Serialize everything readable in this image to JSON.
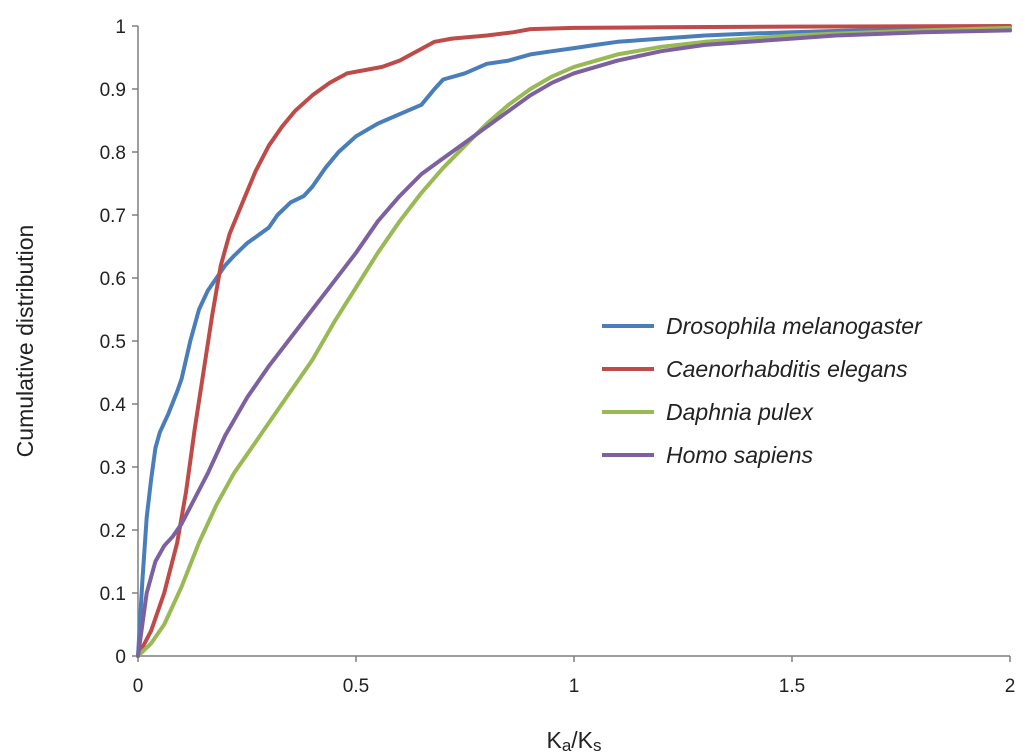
{
  "chart_data": {
    "type": "line",
    "title": "",
    "xlabel": "Ka/Ks",
    "ylabel": "Cumulative distribution",
    "xlim": [
      0,
      2
    ],
    "ylim": [
      0,
      1
    ],
    "x_ticks": [
      "0",
      "0.5",
      "1",
      "1.5",
      "2"
    ],
    "y_ticks": [
      "0",
      "0.1",
      "0.2",
      "0.3",
      "0.4",
      "0.5",
      "0.6",
      "0.7",
      "0.8",
      "0.9",
      "1"
    ],
    "grid": false,
    "legend_position": "right-center",
    "series": [
      {
        "name": "Drosophila melanogaster",
        "color": "#4a7ebb",
        "points": [
          [
            0,
            0
          ],
          [
            0.01,
            0.12
          ],
          [
            0.02,
            0.22
          ],
          [
            0.03,
            0.28
          ],
          [
            0.04,
            0.33
          ],
          [
            0.05,
            0.355
          ],
          [
            0.07,
            0.385
          ],
          [
            0.09,
            0.42
          ],
          [
            0.1,
            0.44
          ],
          [
            0.12,
            0.5
          ],
          [
            0.14,
            0.55
          ],
          [
            0.16,
            0.58
          ],
          [
            0.18,
            0.6
          ],
          [
            0.2,
            0.62
          ],
          [
            0.22,
            0.635
          ],
          [
            0.25,
            0.655
          ],
          [
            0.28,
            0.67
          ],
          [
            0.3,
            0.68
          ],
          [
            0.32,
            0.7
          ],
          [
            0.35,
            0.72
          ],
          [
            0.38,
            0.73
          ],
          [
            0.4,
            0.745
          ],
          [
            0.43,
            0.775
          ],
          [
            0.46,
            0.8
          ],
          [
            0.5,
            0.825
          ],
          [
            0.55,
            0.845
          ],
          [
            0.6,
            0.86
          ],
          [
            0.65,
            0.875
          ],
          [
            0.68,
            0.9
          ],
          [
            0.7,
            0.915
          ],
          [
            0.75,
            0.925
          ],
          [
            0.8,
            0.94
          ],
          [
            0.85,
            0.945
          ],
          [
            0.9,
            0.955
          ],
          [
            0.95,
            0.96
          ],
          [
            1.0,
            0.965
          ],
          [
            1.05,
            0.97
          ],
          [
            1.1,
            0.975
          ],
          [
            1.2,
            0.98
          ],
          [
            1.3,
            0.985
          ],
          [
            1.4,
            0.988
          ],
          [
            1.5,
            0.99
          ],
          [
            1.6,
            0.992
          ],
          [
            1.8,
            0.995
          ],
          [
            2.0,
            0.997
          ]
        ]
      },
      {
        "name": "Caenorhabditis elegans",
        "color": "#be4b48",
        "points": [
          [
            0,
            0
          ],
          [
            0.03,
            0.04
          ],
          [
            0.06,
            0.1
          ],
          [
            0.09,
            0.18
          ],
          [
            0.11,
            0.26
          ],
          [
            0.13,
            0.36
          ],
          [
            0.15,
            0.45
          ],
          [
            0.17,
            0.54
          ],
          [
            0.19,
            0.62
          ],
          [
            0.21,
            0.67
          ],
          [
            0.24,
            0.72
          ],
          [
            0.27,
            0.77
          ],
          [
            0.3,
            0.81
          ],
          [
            0.33,
            0.84
          ],
          [
            0.36,
            0.865
          ],
          [
            0.4,
            0.89
          ],
          [
            0.44,
            0.91
          ],
          [
            0.48,
            0.925
          ],
          [
            0.52,
            0.93
          ],
          [
            0.56,
            0.935
          ],
          [
            0.6,
            0.945
          ],
          [
            0.64,
            0.96
          ],
          [
            0.68,
            0.975
          ],
          [
            0.72,
            0.98
          ],
          [
            0.8,
            0.985
          ],
          [
            0.86,
            0.99
          ],
          [
            0.9,
            0.995
          ],
          [
            1.0,
            0.997
          ],
          [
            1.2,
            0.998
          ],
          [
            1.5,
            0.999
          ],
          [
            2.0,
            1.0
          ]
        ]
      },
      {
        "name": "Daphnia pulex",
        "color": "#98b954",
        "points": [
          [
            0,
            0
          ],
          [
            0.03,
            0.02
          ],
          [
            0.06,
            0.05
          ],
          [
            0.1,
            0.11
          ],
          [
            0.14,
            0.18
          ],
          [
            0.18,
            0.24
          ],
          [
            0.22,
            0.29
          ],
          [
            0.26,
            0.33
          ],
          [
            0.3,
            0.37
          ],
          [
            0.35,
            0.42
          ],
          [
            0.4,
            0.47
          ],
          [
            0.45,
            0.53
          ],
          [
            0.5,
            0.585
          ],
          [
            0.55,
            0.64
          ],
          [
            0.6,
            0.69
          ],
          [
            0.65,
            0.735
          ],
          [
            0.7,
            0.775
          ],
          [
            0.75,
            0.81
          ],
          [
            0.8,
            0.845
          ],
          [
            0.85,
            0.875
          ],
          [
            0.9,
            0.9
          ],
          [
            0.95,
            0.92
          ],
          [
            1.0,
            0.935
          ],
          [
            1.1,
            0.955
          ],
          [
            1.2,
            0.967
          ],
          [
            1.3,
            0.975
          ],
          [
            1.4,
            0.98
          ],
          [
            1.5,
            0.985
          ],
          [
            1.6,
            0.988
          ],
          [
            1.8,
            0.993
          ],
          [
            2.0,
            0.997
          ]
        ]
      },
      {
        "name": "Homo sapiens",
        "color": "#7d60a0",
        "points": [
          [
            0,
            0
          ],
          [
            0.02,
            0.1
          ],
          [
            0.04,
            0.15
          ],
          [
            0.06,
            0.175
          ],
          [
            0.08,
            0.19
          ],
          [
            0.1,
            0.21
          ],
          [
            0.13,
            0.25
          ],
          [
            0.16,
            0.29
          ],
          [
            0.2,
            0.35
          ],
          [
            0.25,
            0.41
          ],
          [
            0.3,
            0.46
          ],
          [
            0.35,
            0.505
          ],
          [
            0.4,
            0.55
          ],
          [
            0.45,
            0.595
          ],
          [
            0.5,
            0.64
          ],
          [
            0.55,
            0.69
          ],
          [
            0.6,
            0.73
          ],
          [
            0.65,
            0.765
          ],
          [
            0.7,
            0.79
          ],
          [
            0.75,
            0.815
          ],
          [
            0.8,
            0.84
          ],
          [
            0.85,
            0.865
          ],
          [
            0.9,
            0.89
          ],
          [
            0.95,
            0.91
          ],
          [
            1.0,
            0.925
          ],
          [
            1.1,
            0.945
          ],
          [
            1.2,
            0.96
          ],
          [
            1.3,
            0.97
          ],
          [
            1.4,
            0.975
          ],
          [
            1.5,
            0.98
          ],
          [
            1.6,
            0.985
          ],
          [
            1.8,
            0.99
          ],
          [
            2.0,
            0.993
          ]
        ]
      }
    ]
  }
}
